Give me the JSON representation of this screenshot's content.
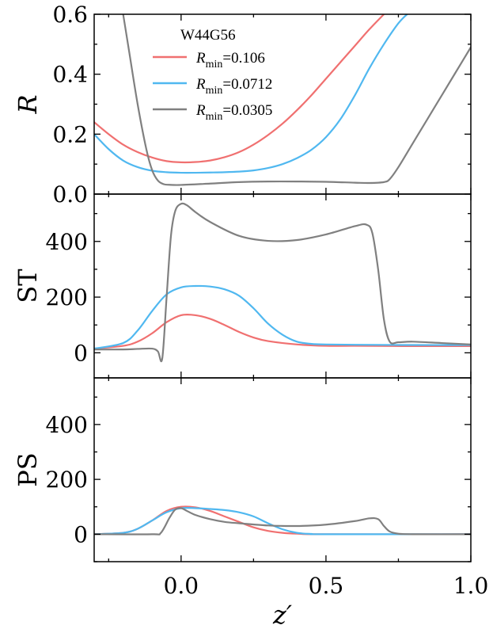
{
  "chart_data": [
    {
      "type": "line",
      "panel": "R",
      "ylabel": "R",
      "ylabel_italic": true,
      "xlim": [
        -0.3,
        1.0
      ],
      "ylim": [
        0.0,
        0.6
      ],
      "yticks": [
        0.0,
        0.2,
        0.4,
        0.6
      ],
      "ytick_labels": [
        "0.0",
        "0.2",
        "0.4",
        "0.6"
      ],
      "legend": {
        "title": "W44G56",
        "placement": "top-center",
        "entries": [
          {
            "prefix": "R",
            "subscript": "min",
            "value": "=0.106"
          },
          {
            "prefix": "R",
            "subscript": "min",
            "value": "=0.0712"
          },
          {
            "prefix": "R",
            "subscript": "min",
            "value": "=0.0305"
          }
        ]
      },
      "series": [
        {
          "name": "Rmin=0.106",
          "color": "#f07070",
          "x": [
            -0.3,
            -0.25,
            -0.2,
            -0.15,
            -0.1,
            -0.05,
            0.0,
            0.05,
            0.1,
            0.15,
            0.2,
            0.25,
            0.3,
            0.35,
            0.4,
            0.45,
            0.5,
            0.55,
            0.6,
            0.65,
            0.7
          ],
          "y": [
            0.24,
            0.2,
            0.165,
            0.14,
            0.122,
            0.11,
            0.106,
            0.107,
            0.112,
            0.123,
            0.14,
            0.165,
            0.197,
            0.235,
            0.28,
            0.33,
            0.385,
            0.44,
            0.495,
            0.55,
            0.6
          ]
        },
        {
          "name": "Rmin=0.0712",
          "color": "#50b8f0",
          "x": [
            -0.3,
            -0.25,
            -0.2,
            -0.15,
            -0.1,
            -0.05,
            0.0,
            0.05,
            0.1,
            0.15,
            0.2,
            0.25,
            0.3,
            0.35,
            0.4,
            0.45,
            0.5,
            0.55,
            0.6,
            0.65,
            0.7,
            0.75,
            0.78
          ],
          "y": [
            0.2,
            0.15,
            0.112,
            0.09,
            0.078,
            0.073,
            0.0712,
            0.0712,
            0.072,
            0.073,
            0.075,
            0.079,
            0.087,
            0.1,
            0.12,
            0.148,
            0.19,
            0.25,
            0.33,
            0.42,
            0.5,
            0.57,
            0.6
          ]
        },
        {
          "name": "Rmin=0.0305",
          "color": "#808080",
          "x": [
            -0.2,
            -0.18,
            -0.15,
            -0.12,
            -0.1,
            -0.08,
            -0.06,
            -0.04,
            0.0,
            0.1,
            0.2,
            0.3,
            0.4,
            0.5,
            0.6,
            0.65,
            0.7,
            0.72,
            0.75,
            0.8,
            0.85,
            0.9,
            0.95,
            1.0
          ],
          "y": [
            0.6,
            0.48,
            0.3,
            0.15,
            0.08,
            0.045,
            0.033,
            0.031,
            0.0305,
            0.035,
            0.04,
            0.042,
            0.042,
            0.041,
            0.038,
            0.037,
            0.04,
            0.05,
            0.09,
            0.17,
            0.25,
            0.33,
            0.41,
            0.49
          ]
        }
      ]
    },
    {
      "type": "line",
      "panel": "ST",
      "ylabel": "ST",
      "xlim": [
        -0.3,
        1.0
      ],
      "ylim": [
        -90,
        570
      ],
      "yticks": [
        0,
        200,
        400
      ],
      "ytick_labels": [
        "0",
        "200",
        "400"
      ],
      "series": [
        {
          "name": "Rmin=0.106",
          "color": "#f07070",
          "x": [
            -0.3,
            -0.2,
            -0.15,
            -0.1,
            -0.05,
            0.0,
            0.05,
            0.1,
            0.15,
            0.2,
            0.25,
            0.3,
            0.4,
            0.5,
            0.6,
            0.8,
            1.0
          ],
          "y": [
            15,
            25,
            40,
            70,
            110,
            135,
            135,
            122,
            100,
            75,
            55,
            42,
            30,
            25,
            25,
            24,
            24
          ]
        },
        {
          "name": "Rmin=0.0712",
          "color": "#50b8f0",
          "x": [
            -0.3,
            -0.2,
            -0.15,
            -0.1,
            -0.05,
            0.0,
            0.05,
            0.1,
            0.15,
            0.2,
            0.25,
            0.3,
            0.35,
            0.4,
            0.45,
            0.5,
            0.6,
            0.8,
            1.0
          ],
          "y": [
            15,
            35,
            80,
            150,
            210,
            235,
            240,
            238,
            228,
            205,
            160,
            105,
            65,
            40,
            32,
            30,
            29,
            28,
            28
          ]
        },
        {
          "name": "Rmin=0.0305",
          "color": "#808080",
          "x": [
            -0.3,
            -0.2,
            -0.15,
            -0.1,
            -0.08,
            -0.065,
            -0.05,
            -0.035,
            -0.02,
            0.0,
            0.02,
            0.05,
            0.1,
            0.2,
            0.3,
            0.4,
            0.5,
            0.6,
            0.64,
            0.66,
            0.68,
            0.7,
            0.72,
            0.75,
            0.8,
            0.9,
            1.0
          ],
          "y": [
            12,
            12,
            14,
            15,
            5,
            -20,
            200,
            420,
            510,
            535,
            530,
            505,
            470,
            420,
            402,
            405,
            425,
            455,
            460,
            430,
            300,
            120,
            40,
            38,
            40,
            35,
            30
          ]
        }
      ]
    },
    {
      "type": "line",
      "panel": "PS",
      "ylabel": "PS",
      "xlabel": "z′",
      "xlabel_italic": true,
      "xlim": [
        -0.3,
        1.0
      ],
      "ylim": [
        -100,
        570
      ],
      "xticks": [
        0.0,
        0.5,
        1.0
      ],
      "xtick_labels": [
        "0.0",
        "0.5",
        "1.0"
      ],
      "yticks": [
        0,
        200,
        400
      ],
      "ytick_labels": [
        "0",
        "200",
        "400"
      ],
      "series": [
        {
          "name": "Rmin=0.106",
          "color": "#f07070",
          "x": [
            -0.3,
            -0.2,
            -0.15,
            -0.1,
            -0.05,
            0.0,
            0.05,
            0.1,
            0.15,
            0.2,
            0.25,
            0.3,
            0.35,
            0.4,
            0.5,
            1.0
          ],
          "y": [
            0,
            5,
            20,
            50,
            85,
            100,
            98,
            85,
            65,
            45,
            25,
            12,
            5,
            2,
            0,
            0
          ]
        },
        {
          "name": "Rmin=0.0712",
          "color": "#50b8f0",
          "x": [
            -0.3,
            -0.2,
            -0.15,
            -0.1,
            -0.05,
            0.0,
            0.05,
            0.1,
            0.15,
            0.2,
            0.25,
            0.3,
            0.35,
            0.4,
            0.45,
            0.5,
            1.0
          ],
          "y": [
            0,
            5,
            20,
            50,
            80,
            95,
            95,
            92,
            88,
            80,
            65,
            40,
            18,
            5,
            1,
            0,
            0
          ]
        },
        {
          "name": "Rmin=0.0305",
          "color": "#808080",
          "x": [
            -0.3,
            -0.1,
            -0.07,
            -0.04,
            -0.02,
            0.0,
            0.02,
            0.05,
            0.1,
            0.15,
            0.2,
            0.3,
            0.4,
            0.5,
            0.6,
            0.65,
            0.68,
            0.7,
            0.72,
            0.75,
            0.8,
            1.0
          ],
          "y": [
            0,
            0,
            5,
            60,
            90,
            95,
            85,
            70,
            55,
            45,
            40,
            32,
            30,
            35,
            48,
            58,
            55,
            30,
            10,
            2,
            0,
            0
          ]
        }
      ]
    }
  ]
}
